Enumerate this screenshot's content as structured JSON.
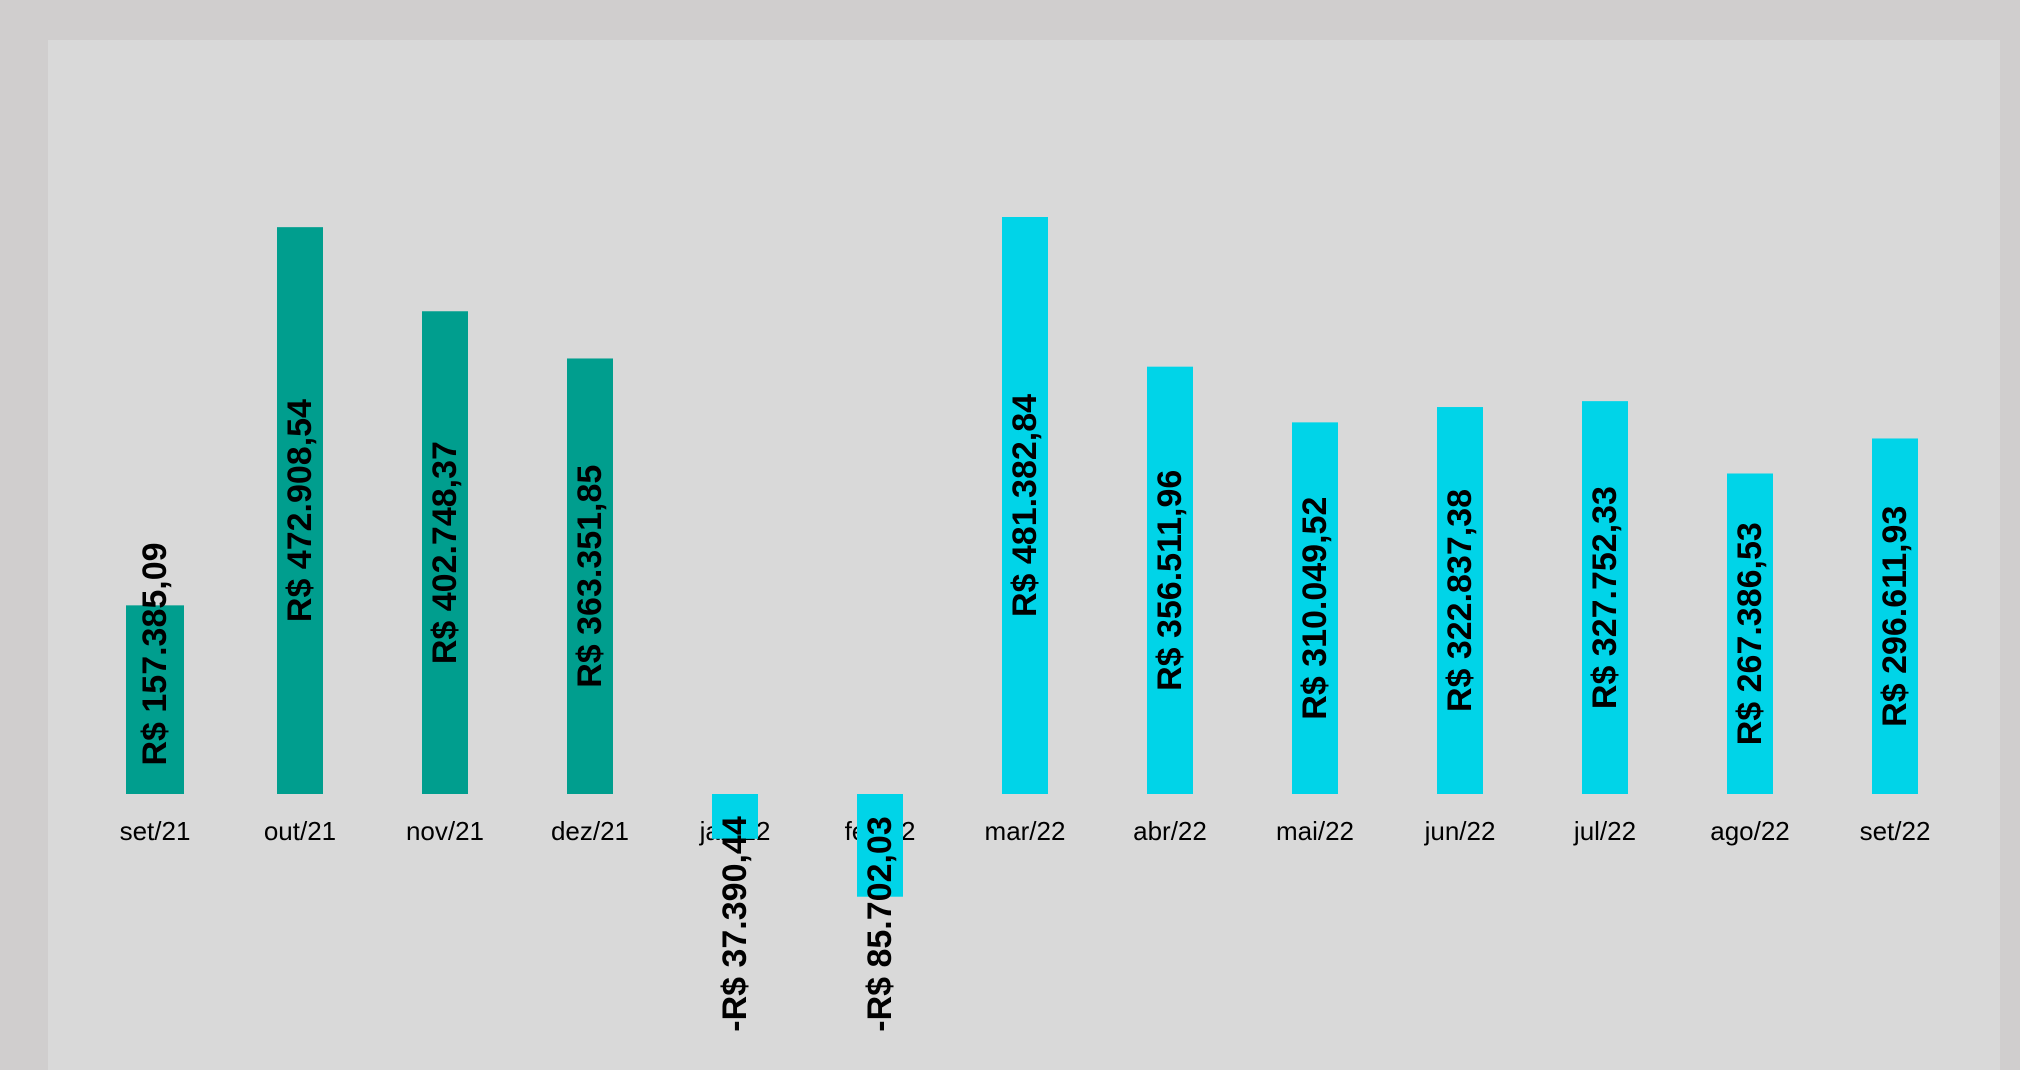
{
  "chart_data": {
    "type": "bar",
    "title": "",
    "xlabel": "",
    "ylabel": "",
    "categories": [
      "set/21",
      "out/21",
      "nov/21",
      "dez/21",
      "jan/22",
      "fev/22",
      "mar/22",
      "abr/22",
      "mai/22",
      "jun/22",
      "jul/22",
      "ago/22",
      "set/22"
    ],
    "series": [
      {
        "color": "#009e8e",
        "values": [
          157385.09,
          472908.54,
          402748.37,
          363351.85,
          null,
          null,
          null,
          null,
          null,
          null,
          null,
          null,
          null
        ],
        "labels": [
          "R$ 157.385,09",
          "R$ 472.908,54",
          "R$ 402.748,37",
          "R$ 363.351,85",
          "",
          "",
          "",
          "",
          "",
          "",
          "",
          "",
          ""
        ]
      },
      {
        "color": "#00d4e8",
        "values": [
          150000,
          null,
          null,
          null,
          -37390.44,
          -85702.03,
          481382.84,
          356511.96,
          310049.52,
          322837.38,
          327752.33,
          267386.53,
          296611.93
        ],
        "labels": [
          "",
          "",
          "",
          "",
          "-R$ 37.390,44",
          "-R$ 85.702,03",
          "R$ 481.382,84",
          "R$ 356.511,96",
          "R$ 310.049,52",
          "R$ 322.837,38",
          "R$ 327.752,33",
          "R$ 267.386,53",
          "R$ 296.611,93"
        ]
      }
    ],
    "grid": false,
    "legend": "none",
    "background_color": "#d9d9d9",
    "frame_color": "#d0cece",
    "label_color": "#000000"
  }
}
